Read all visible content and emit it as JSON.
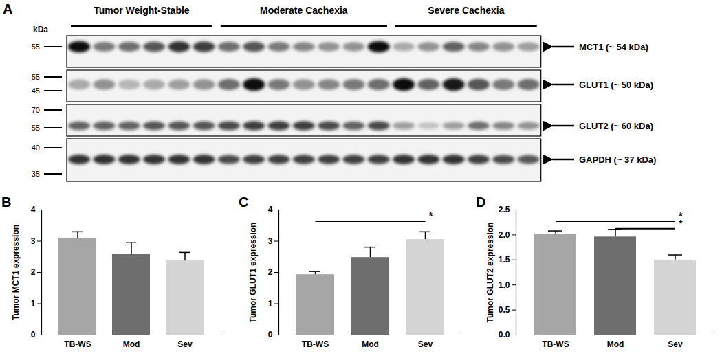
{
  "blot": {
    "panel": "A",
    "unit_label": "kDa",
    "groups": [
      {
        "name": "Tumor Weight-Stable",
        "lanes": 6
      },
      {
        "name": "Moderate Cachexia",
        "lanes": 7
      },
      {
        "name": "Severe Cachexia",
        "lanes": 6
      }
    ],
    "strips": [
      {
        "label": "MCT1 (~ 54 kDa)",
        "markers": [
          55
        ],
        "band_intensity": [
          0.95,
          0.5,
          0.55,
          0.65,
          0.8,
          0.75,
          0.55,
          0.65,
          0.5,
          0.45,
          0.4,
          0.4,
          0.95,
          0.3,
          0.4,
          0.6,
          0.45,
          0.4,
          0.35
        ]
      },
      {
        "label": "GLUT1 (~ 50 kDa)",
        "markers": [
          55,
          45
        ],
        "band_intensity": [
          0.3,
          0.4,
          0.25,
          0.3,
          0.35,
          0.4,
          0.55,
          0.95,
          0.5,
          0.4,
          0.45,
          0.5,
          0.55,
          0.95,
          0.6,
          0.9,
          0.65,
          0.5,
          0.55
        ]
      },
      {
        "label": "GLUT2 (~ 60 kDa)",
        "markers": [
          70,
          55
        ],
        "band_intensity": [
          0.6,
          0.6,
          0.6,
          0.65,
          0.65,
          0.65,
          0.7,
          0.75,
          0.75,
          0.75,
          0.7,
          0.6,
          0.7,
          0.35,
          0.2,
          0.35,
          0.55,
          0.45,
          0.4
        ]
      },
      {
        "label": "GAPDH (~ 37 kDa)",
        "markers": [
          40,
          35
        ],
        "band_intensity": [
          0.8,
          0.8,
          0.8,
          0.8,
          0.8,
          0.8,
          0.7,
          0.75,
          0.75,
          0.75,
          0.75,
          0.75,
          0.75,
          0.8,
          0.8,
          0.8,
          0.75,
          0.7,
          0.65
        ]
      }
    ]
  },
  "chart_data": [
    {
      "type": "bar",
      "panel": "B",
      "y_label": "Tumor MCT1 expression",
      "categories": [
        "TB-WS",
        "Mod",
        "Sev"
      ],
      "values": [
        3.1,
        2.58,
        2.37
      ],
      "errors": [
        0.2,
        0.37,
        0.27
      ],
      "colors": [
        "#a6a6a6",
        "#6e6e6e",
        "#d4d4d4"
      ],
      "ylim": [
        0,
        4
      ],
      "yticks": [
        0,
        1,
        2,
        3,
        4
      ],
      "grid": false,
      "annotations": []
    },
    {
      "type": "bar",
      "panel": "C",
      "y_label": "Tumor GLUT1 expression",
      "categories": [
        "TB-WS",
        "Mod",
        "Sev"
      ],
      "values": [
        1.93,
        2.48,
        3.05
      ],
      "errors": [
        0.1,
        0.33,
        0.25
      ],
      "colors": [
        "#a6a6a6",
        "#6e6e6e",
        "#d4d4d4"
      ],
      "ylim": [
        0,
        4
      ],
      "yticks": [
        0,
        1,
        2,
        3,
        4
      ],
      "grid": false,
      "annotations": [
        {
          "from": "TB-WS",
          "to": "Sev",
          "text": "*"
        }
      ]
    },
    {
      "type": "bar",
      "panel": "D",
      "y_label": "Tumor GLUT2 expression",
      "categories": [
        "TB-WS",
        "Mod",
        "Sev"
      ],
      "values": [
        2.01,
        1.96,
        1.5
      ],
      "errors": [
        0.07,
        0.15,
        0.1
      ],
      "colors": [
        "#a6a6a6",
        "#6e6e6e",
        "#d4d4d4"
      ],
      "ylim": [
        0,
        2.5
      ],
      "yticks": [
        {
          "value": 0,
          "label": "0.0"
        },
        0.5,
        {
          "value": 1,
          "label": "1.0"
        },
        1.5,
        {
          "value": 2,
          "label": "2.0"
        },
        2.5
      ],
      "grid": false,
      "annotations": [
        {
          "from": "TB-WS",
          "to": "Sev",
          "text": "*"
        },
        {
          "from": "Mod",
          "to": "Sev",
          "text": "*"
        }
      ]
    }
  ]
}
